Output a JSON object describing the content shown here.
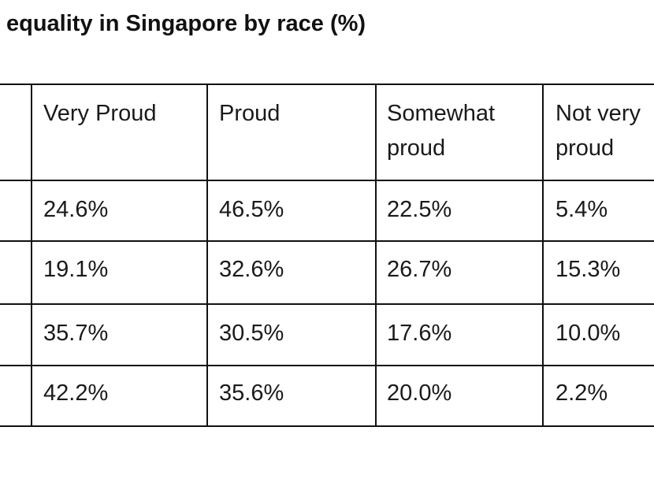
{
  "title": "equality in Singapore by race (%)",
  "chart_data": {
    "type": "table",
    "title": "equality in Singapore by race (%)",
    "columns": [
      "Very Proud",
      "Proud",
      "Somewhat proud",
      "Not very proud"
    ],
    "column_lines": [
      [
        "Very Proud"
      ],
      [
        "Proud"
      ],
      [
        "Somewhat",
        "proud"
      ],
      [
        "Not very",
        "proud"
      ]
    ],
    "rows": [
      [
        "24.6%",
        "46.5%",
        "22.5%",
        "5.4%"
      ],
      [
        "19.1%",
        "32.6%",
        "26.7%",
        "15.3%"
      ],
      [
        "35.7%",
        "30.5%",
        "17.6%",
        "10.0%"
      ],
      [
        "42.2%",
        "35.6%",
        "20.0%",
        "2.2%"
      ]
    ]
  }
}
